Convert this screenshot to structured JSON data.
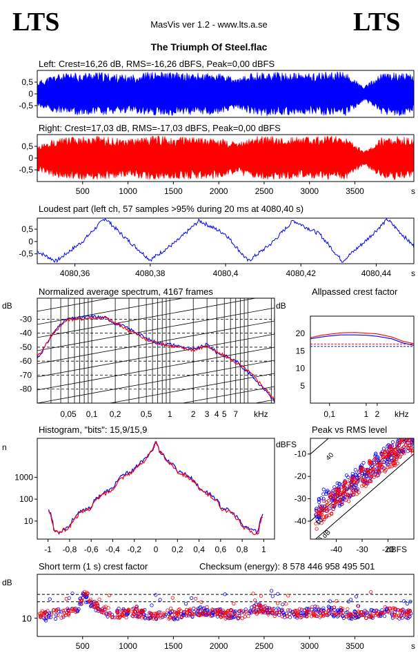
{
  "header": {
    "logo_left": "LTS",
    "logo_right": "LTS",
    "app_title": "MasVis ver 1.2 - www.lts.a.se",
    "file_title": "The Triumph Of Steel.flac"
  },
  "colors": {
    "left": "#0000ff",
    "right": "#ff0000",
    "axis": "#000000",
    "background": "#ffffff"
  },
  "chart_data": [
    {
      "id": "left_waveform",
      "type": "area",
      "title": "Left: Crest=16,26 dB, RMS=-16,26 dBFS, Peak=0,00 dBFS",
      "xlabel": "s",
      "xlim": [
        0,
        4150
      ],
      "ylim": [
        -1,
        1
      ],
      "yticks": [
        0.5,
        0,
        -0.5
      ],
      "ytick_labels": [
        "0,5",
        "0",
        "-0,5"
      ],
      "series": [
        {
          "color": "#0000ff",
          "x": [
            0,
            200,
            400,
            600,
            800,
            1000,
            1200,
            1400,
            1600,
            1800,
            2000,
            2200,
            2400,
            2600,
            2800,
            3000,
            3200,
            3400,
            3600,
            3800,
            4000,
            4150
          ],
          "envelope": [
            0.55,
            0.85,
            0.9,
            0.95,
            0.9,
            0.8,
            0.95,
            0.95,
            0.9,
            0.9,
            0.9,
            0.65,
            0.95,
            0.95,
            0.9,
            0.9,
            0.95,
            0.95,
            0.3,
            0.9,
            0.95,
            0.8
          ]
        }
      ]
    },
    {
      "id": "right_waveform",
      "type": "area",
      "title": "Right: Crest=17,03 dB, RMS=-17,03 dBFS, Peak=0,00 dBFS",
      "xlabel": "s",
      "xlim": [
        0,
        4150
      ],
      "ylim": [
        -1,
        1
      ],
      "xticks": [
        500,
        1000,
        1500,
        2000,
        2500,
        3000,
        3500
      ],
      "yticks": [
        0.5,
        0,
        -0.5
      ],
      "ytick_labels": [
        "0,5",
        "0",
        "-0,5"
      ],
      "series": [
        {
          "color": "#ff0000",
          "x": [
            0,
            200,
            400,
            600,
            800,
            1000,
            1200,
            1400,
            1600,
            1800,
            2000,
            2200,
            2400,
            2600,
            2800,
            3000,
            3200,
            3400,
            3600,
            3800,
            4000,
            4150
          ],
          "envelope": [
            0.55,
            0.85,
            0.9,
            0.95,
            0.9,
            0.8,
            0.95,
            0.95,
            0.9,
            0.9,
            0.9,
            0.65,
            0.95,
            0.95,
            0.9,
            0.9,
            0.95,
            0.95,
            0.3,
            0.9,
            0.95,
            0.8
          ]
        }
      ]
    },
    {
      "id": "loudest_part",
      "type": "line",
      "title": "Loudest part (left  ch, 57 samples >95% during 20 ms at 4080,40 s)",
      "xlabel": "s",
      "xlim": [
        4080.35,
        4080.45
      ],
      "ylim": [
        -0.9,
        0.95
      ],
      "xticks": [
        4080.36,
        4080.38,
        4080.4,
        4080.42,
        4080.44
      ],
      "xtick_labels": [
        "4080,36",
        "4080,38",
        "4080,4",
        "4080,42",
        "4080,44"
      ],
      "yticks": [
        0.5,
        0,
        -0.5
      ],
      "ytick_labels": [
        "0,5",
        "0",
        "-0,5"
      ],
      "series": [
        {
          "color": "#0000ff",
          "x": [
            4080.35,
            4080.355,
            4080.362,
            4080.368,
            4080.373,
            4080.38,
            4080.387,
            4080.393,
            4080.4,
            4080.406,
            4080.412,
            4080.418,
            4080.425,
            4080.431,
            4080.437,
            4080.443,
            4080.45
          ],
          "y": [
            -0.4,
            -0.8,
            0.0,
            0.95,
            0.2,
            -0.75,
            0.0,
            0.85,
            0.3,
            -0.8,
            -0.1,
            0.85,
            0.3,
            -0.8,
            0.0,
            0.9,
            -0.2
          ]
        }
      ]
    },
    {
      "id": "spectrum",
      "type": "line",
      "title": "Normalized average spectrum, 4167 frames",
      "ylabel": "dB",
      "xlabel": "kHz",
      "log_x": true,
      "xlim": [
        0.02,
        22
      ],
      "ylim": [
        -90,
        -15
      ],
      "xticks": [
        0.05,
        0.1,
        0.2,
        0.5,
        1,
        2,
        3,
        4,
        5,
        7
      ],
      "xtick_labels": [
        "0,05",
        "0,1",
        "0,2",
        "0,5",
        "1",
        "2",
        "3",
        "4",
        "5",
        "7"
      ],
      "yticks": [
        -30,
        -40,
        -50,
        -60,
        -70,
        -80
      ],
      "series": [
        {
          "color": "#0000ff",
          "x": [
            0.02,
            0.025,
            0.03,
            0.04,
            0.05,
            0.07,
            0.1,
            0.15,
            0.2,
            0.3,
            0.5,
            0.7,
            1,
            1.5,
            2,
            3,
            4,
            5,
            7,
            10,
            15,
            22
          ],
          "y": [
            -58,
            -50,
            -42,
            -33,
            -30,
            -29,
            -28,
            -29,
            -33,
            -37,
            -44,
            -47,
            -48,
            -50,
            -52,
            -48,
            -54,
            -56,
            -60,
            -68,
            -78,
            -89
          ]
        },
        {
          "color": "#ff0000",
          "x": [
            0.02,
            0.025,
            0.03,
            0.04,
            0.05,
            0.07,
            0.1,
            0.15,
            0.2,
            0.3,
            0.5,
            0.7,
            1,
            1.5,
            2,
            3,
            4,
            5,
            7,
            10,
            15,
            22
          ],
          "y": [
            -57,
            -49,
            -42,
            -34,
            -30,
            -30,
            -29,
            -29,
            -33,
            -38,
            -45,
            -47,
            -49,
            -51,
            -52,
            -49,
            -54,
            -56,
            -61,
            -67,
            -77,
            -88
          ]
        }
      ]
    },
    {
      "id": "allpassed_crest",
      "type": "line",
      "title": "Allpassed crest factor",
      "ylabel": "dB",
      "xlabel": "kHz",
      "log_x": true,
      "xlim": [
        0.03,
        20
      ],
      "ylim": [
        0,
        25
      ],
      "xticks": [
        0.1,
        1,
        2
      ],
      "xtick_labels": [
        "0,1",
        "1",
        "2"
      ],
      "yticks": [
        5,
        10,
        15,
        20
      ],
      "reference_lines": [
        {
          "y": 16.3,
          "color": "#0000ff"
        },
        {
          "y": 17.0,
          "color": "#ff0000"
        }
      ],
      "series": [
        {
          "color": "#0000ff",
          "x": [
            0.03,
            0.06,
            0.1,
            0.2,
            0.5,
            1,
            2,
            5,
            10,
            20
          ],
          "y": [
            18.5,
            19.0,
            19.3,
            19.6,
            19.6,
            19.5,
            19.2,
            18.5,
            17.3,
            16.6
          ]
        },
        {
          "color": "#ff0000",
          "x": [
            0.03,
            0.06,
            0.1,
            0.2,
            0.5,
            1,
            2,
            5,
            10,
            20
          ],
          "y": [
            18.8,
            19.5,
            19.8,
            20.2,
            20.3,
            20.1,
            19.9,
            19.0,
            17.8,
            17.1
          ]
        }
      ]
    },
    {
      "id": "histogram",
      "type": "line",
      "title": "Histogram, \"bits\": 15,9/15,9",
      "ylabel": "n",
      "log_y": true,
      "xlim": [
        -1.1,
        1.1
      ],
      "ylim": [
        1.5,
        60000
      ],
      "xticks": [
        -1,
        -0.8,
        -0.6,
        -0.4,
        -0.2,
        0,
        0.2,
        0.4,
        0.6,
        0.8,
        1
      ],
      "xtick_labels": [
        "-1",
        "-0,8",
        "-0,6",
        "-0,4",
        "-0,2",
        "0",
        "0,2",
        "0,4",
        "0,6",
        "0,8",
        "1"
      ],
      "yticks": [
        10,
        100,
        1000
      ],
      "ytick_labels": [
        "10",
        "100",
        "1000"
      ],
      "series": [
        {
          "color": "#0000ff",
          "x": [
            -1,
            -0.95,
            -0.9,
            -0.8,
            -0.6,
            -0.4,
            -0.2,
            -0.1,
            -0.03,
            0,
            0.03,
            0.1,
            0.2,
            0.4,
            0.6,
            0.8,
            0.9,
            0.95,
            1
          ],
          "y": [
            40,
            4,
            3,
            6,
            45,
            300,
            2200,
            6500,
            17000,
            40000,
            17000,
            6000,
            2000,
            300,
            45,
            6,
            4,
            3,
            25
          ]
        },
        {
          "color": "#ff0000",
          "x": [
            -1,
            -0.95,
            -0.9,
            -0.8,
            -0.6,
            -0.4,
            -0.2,
            -0.1,
            -0.03,
            0,
            0.03,
            0.1,
            0.2,
            0.4,
            0.6,
            0.8,
            0.9,
            0.95,
            1
          ],
          "y": [
            30,
            4,
            3,
            5,
            40,
            260,
            1900,
            6000,
            16000,
            40000,
            16000,
            5500,
            1800,
            260,
            40,
            5,
            3,
            2.5,
            20
          ]
        }
      ]
    },
    {
      "id": "peak_vs_rms",
      "type": "scatter",
      "title": "Peak vs RMS level",
      "xlabel": "dBFS",
      "ylabel": "dBFS",
      "xlim": [
        -50,
        -10
      ],
      "ylim": [
        -48,
        -3
      ],
      "xticks": [
        -40,
        -30,
        -20
      ],
      "yticks": [
        -10,
        -20,
        -30,
        -40
      ],
      "diagonal_labels": [
        "40",
        "10",
        "0 dB"
      ],
      "series": [
        {
          "color": "#0000ff",
          "x": [
            -48,
            -46,
            -45,
            -42,
            -40,
            -38,
            -36,
            -35,
            -33,
            -31,
            -30,
            -28,
            -26,
            -25,
            -24,
            -22,
            -20,
            -19,
            -18,
            -16,
            -15,
            -14,
            -13,
            -12
          ],
          "y": [
            -38,
            -33,
            -30,
            -32,
            -27,
            -29,
            -24,
            -26,
            -22,
            -20,
            -18,
            -19,
            -16,
            -14,
            -15,
            -12,
            -10,
            -9,
            -8,
            -7,
            -6,
            -6,
            -5,
            -4
          ]
        },
        {
          "color": "#ff0000",
          "x": [
            -47,
            -45,
            -43,
            -41,
            -39,
            -37,
            -35,
            -34,
            -32,
            -30,
            -29,
            -27,
            -25,
            -24,
            -23,
            -21,
            -20,
            -19,
            -17,
            -16,
            -15,
            -14,
            -13,
            -12
          ],
          "y": [
            -40,
            -35,
            -33,
            -31,
            -30,
            -27,
            -26,
            -24,
            -23,
            -21,
            -20,
            -18,
            -17,
            -16,
            -14,
            -13,
            -12,
            -11,
            -10,
            -9,
            -8,
            -7,
            -6,
            -5
          ]
        }
      ]
    },
    {
      "id": "short_term_crest",
      "type": "scatter",
      "title": "Short term (1 s) crest factor",
      "annotation": "Checksum (energy):  8 578 446 958 495 501",
      "ylabel": "dB",
      "xlabel": "s",
      "xlim": [
        0,
        4150
      ],
      "ylim": [
        5,
        22
      ],
      "xticks": [
        500,
        1000,
        1500,
        2000,
        2500,
        3000,
        3500
      ],
      "yticks": [
        10
      ],
      "reference_lines": [
        {
          "y": 14.5
        },
        {
          "y": 16.5
        }
      ],
      "series": [
        {
          "color": "#0000ff",
          "x": [
            100,
            300,
            450,
            500,
            600,
            800,
            1000,
            1200,
            1400,
            1600,
            1800,
            2000,
            2200,
            2400,
            2600,
            2800,
            3000,
            3200,
            3400,
            3600,
            3800,
            4000
          ],
          "y": [
            10.5,
            11,
            13,
            16,
            14,
            11,
            12,
            11,
            10.5,
            11,
            12,
            11.5,
            11,
            13,
            12,
            11,
            11.5,
            12,
            11,
            11,
            11.5,
            11
          ]
        },
        {
          "color": "#ff0000",
          "x": [
            150,
            350,
            480,
            520,
            650,
            850,
            1050,
            1250,
            1450,
            1650,
            1850,
            2050,
            2250,
            2450,
            2650,
            2850,
            3050,
            3250,
            3450,
            3650,
            3850,
            4050
          ],
          "y": [
            11,
            11.5,
            14,
            17,
            13,
            11,
            11.5,
            11,
            11,
            11.5,
            12,
            11,
            11,
            12.5,
            11.5,
            11.5,
            11,
            12,
            11.5,
            11,
            12,
            11
          ]
        }
      ]
    }
  ]
}
